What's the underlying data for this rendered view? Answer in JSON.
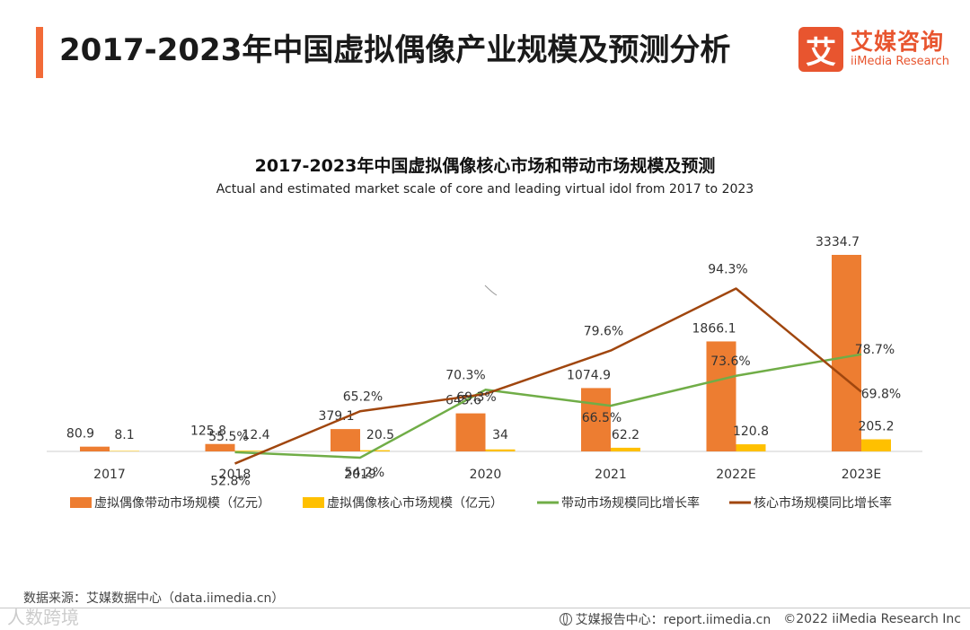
{
  "header": {
    "title": "2017-2023年中国虚拟偶像产业规模及预测分析",
    "accent_color": "#F26B38"
  },
  "logo": {
    "mark": "艾",
    "name": "艾媒咨询",
    "name_en": "iiMedia Research",
    "color": "#E8552F"
  },
  "chart": {
    "title": "2017-2023年中国虚拟偶像核心市场和带动市场规模及预测",
    "subtitle": "Actual and estimated market scale of core and leading virtual idol from 2017 to 2023"
  },
  "chart_data": {
    "type": "bar",
    "title": "2017-2023年中国虚拟偶像核心市场和带动市场规模及预测",
    "subtitle": "Actual and estimated market scale of core and leading virtual idol from 2017 to 2023",
    "categories": [
      "2017",
      "2018",
      "2019",
      "2020",
      "2021",
      "2022E",
      "2023E"
    ],
    "series": [
      {
        "name": "虚拟偶像带动市场规模（亿元）",
        "kind": "bar",
        "color": "#ED7D31",
        "values": [
          80.9,
          125.8,
          379.1,
          645.6,
          1074.9,
          1866.1,
          3334.7
        ],
        "labels": [
          "80.9",
          "125.8",
          "379.1",
          "645.6",
          "1074.9",
          "1866.1",
          "3334.7"
        ]
      },
      {
        "name": "虚拟偶像核心市场规模（亿元）",
        "kind": "bar",
        "color": "#FFC000",
        "values": [
          8.1,
          12.4,
          20.5,
          34,
          62.2,
          120.8,
          205.2
        ],
        "labels": [
          "8.1",
          "12.4",
          "20.5",
          "34",
          "62.2",
          "120.8",
          "205.2"
        ]
      },
      {
        "name": "带动市场规模同比增长率",
        "kind": "line",
        "color": "#70AD47",
        "values": [
          null,
          55.5,
          54.2,
          70.3,
          66.5,
          73.6,
          78.7
        ],
        "labels": [
          null,
          "55.5%",
          "54.2%",
          "70.3%",
          "66.5%",
          "73.6%",
          "78.7%"
        ]
      },
      {
        "name": "核心市场规模同比增长率",
        "kind": "line",
        "color": "#A0460E",
        "values": [
          null,
          52.8,
          65.2,
          69.3,
          79.6,
          94.3,
          69.8
        ],
        "labels": [
          null,
          "52.8%",
          "65.2%",
          "69.3%",
          "79.6%",
          "94.3%",
          "69.8%"
        ]
      }
    ],
    "ylim_bars": [
      0,
      3334.7
    ],
    "ylim_lines_percent": [
      0,
      100
    ],
    "legend_position": "bottom"
  },
  "source": "数据来源：艾媒数据中心（data.iimedia.cn）",
  "footer": {
    "report_site": "艾媒报告中心：report.iimedia.cn",
    "copyright": "©2022  iiMedia Research  Inc"
  },
  "watermark": "人数跨境"
}
